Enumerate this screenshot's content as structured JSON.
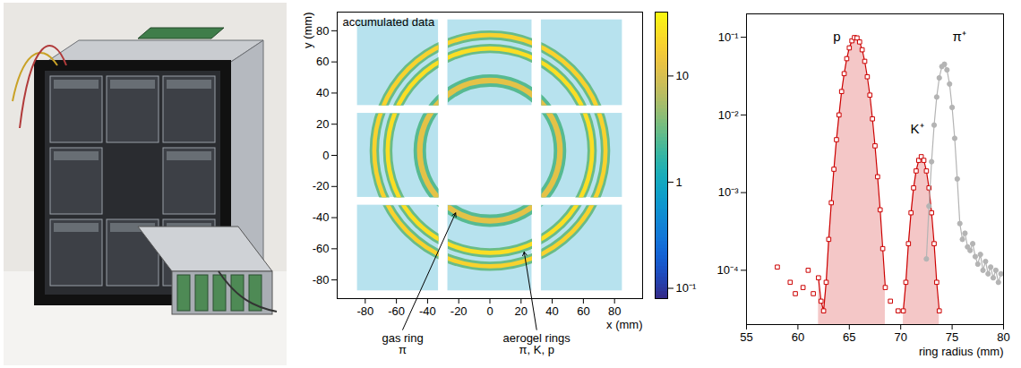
{
  "chart_data": [
    {
      "type": "ring_map",
      "title": "accumulated data",
      "x_label": "x (mm)",
      "y_label": "y (mm)",
      "xlim": [
        -98,
        98
      ],
      "ylim": [
        -92,
        92
      ],
      "xticks": [
        -80,
        -60,
        -40,
        -20,
        0,
        20,
        40,
        60,
        80
      ],
      "yticks": [
        -80,
        -60,
        -40,
        -20,
        0,
        20,
        40,
        60,
        80
      ],
      "center": [
        0,
        3
      ],
      "rings": [
        {
          "radius": 45,
          "width": 8,
          "core_value": 12,
          "edge_value": 2.5
        },
        {
          "radius": 65.6,
          "width": 6,
          "core_value": 25,
          "edge_value": 3
        },
        {
          "radius": 74.2,
          "width": 6,
          "core_value": 20,
          "edge_value": 3
        }
      ],
      "background": 0.8,
      "sensor_tiles": [
        [
          -85,
          -33,
          32,
          87
        ],
        [
          -27,
          27,
          32,
          87
        ],
        [
          33,
          85,
          32,
          87
        ],
        [
          -85,
          -33,
          -27,
          27
        ],
        [
          33,
          85,
          -27,
          27
        ],
        [
          -85,
          -33,
          -87,
          -32
        ],
        [
          -27,
          27,
          -87,
          -32
        ],
        [
          33,
          85,
          -87,
          -32
        ]
      ],
      "zlim": [
        0.08,
        40
      ],
      "zticks": [
        {
          "value": 0.1,
          "label": "10⁻¹"
        },
        1,
        10
      ],
      "annotations": [
        {
          "text": [
            "gas ring",
            "π"
          ],
          "x": -56,
          "y": -112,
          "target": [
            -22,
            -37
          ]
        },
        {
          "text": [
            "aerogel rings",
            "π, K, p"
          ],
          "x": 30,
          "y": -112,
          "target": [
            22,
            -62
          ]
        }
      ]
    },
    {
      "type": "line",
      "x_label": "ring radius (mm)",
      "log": "y",
      "xlim": [
        55,
        80
      ],
      "xticks": [
        55,
        60,
        65,
        70,
        75,
        80
      ],
      "ylim": [
        2e-05,
        0.2
      ],
      "yticks": [
        {
          "value": 0.0001,
          "label": "10⁻⁴"
        },
        {
          "value": 0.001,
          "label": "10⁻³"
        },
        {
          "value": 0.01,
          "label": "10⁻²"
        },
        {
          "value": 0.1,
          "label": "10⁻¹"
        }
      ],
      "x": [
        57.5,
        57.75,
        58,
        58.25,
        58.5,
        58.75,
        59,
        59.25,
        59.5,
        59.75,
        60,
        60.25,
        60.5,
        60.75,
        61,
        61.25,
        61.5,
        61.75,
        62,
        62.25,
        62.5,
        62.75,
        63,
        63.25,
        63.5,
        63.75,
        64,
        64.25,
        64.5,
        64.75,
        65,
        65.25,
        65.5,
        65.75,
        66,
        66.25,
        66.5,
        66.75,
        67,
        67.25,
        67.5,
        67.75,
        68,
        68.25,
        68.5,
        68.75,
        69,
        69.25,
        69.5,
        69.75,
        70,
        70.25,
        70.5,
        70.75,
        71,
        71.25,
        71.5,
        71.75,
        72,
        72.25,
        72.5,
        72.75,
        73,
        73.25,
        73.5,
        73.75,
        74,
        74.25,
        74.5,
        74.75,
        75,
        75.25,
        75.5,
        75.75,
        76,
        76.25,
        76.5,
        76.75,
        77,
        77.25,
        77.5,
        77.75,
        78,
        78.25,
        78.5,
        78.75,
        79,
        79.25,
        79.5,
        79.75
      ],
      "series": [
        {
          "color": "#cc0000",
          "type": "area",
          "marker": "square",
          "line_style": "solid",
          "values": [
            null,
            null,
            0.00011,
            null,
            null,
            null,
            null,
            7e-05,
            null,
            5e-05,
            null,
            null,
            6e-05,
            null,
            0.0001,
            null,
            5e-05,
            null,
            8e-05,
            4e-05,
            3e-05,
            7e-05,
            0.00025,
            0.00074,
            0.002,
            0.0048,
            0.01,
            0.02,
            0.034,
            0.053,
            0.073,
            0.09,
            0.099,
            0.098,
            0.087,
            0.069,
            0.049,
            0.031,
            0.018,
            0.0089,
            0.004,
            0.0016,
            0.0006,
            0.00019,
            6e-05,
            null,
            4e-05,
            null,
            null,
            3e-05,
            null,
            3e-05,
            7e-05,
            0.00022,
            0.00055,
            0.00115,
            0.0019,
            0.0026,
            0.0029,
            0.0026,
            0.0019,
            0.00115,
            0.00055,
            0.00022,
            7e-05,
            3e-05,
            null,
            null,
            null,
            null,
            null,
            null,
            null,
            null,
            null,
            null,
            null,
            null,
            null,
            null,
            null,
            null,
            null,
            null,
            null,
            null,
            null,
            null,
            null,
            null
          ]
        },
        {
          "color": "#b4b4b4",
          "type": "line",
          "marker": "circle",
          "line_style": "solid",
          "values": [
            null,
            null,
            null,
            null,
            null,
            null,
            null,
            null,
            null,
            null,
            null,
            null,
            null,
            null,
            null,
            null,
            null,
            null,
            null,
            null,
            null,
            null,
            null,
            null,
            null,
            null,
            null,
            null,
            null,
            null,
            null,
            null,
            null,
            null,
            null,
            null,
            null,
            null,
            null,
            null,
            null,
            null,
            null,
            null,
            null,
            null,
            null,
            null,
            null,
            null,
            null,
            null,
            null,
            null,
            null,
            null,
            null,
            null,
            null,
            null,
            0.00014,
            0.00067,
            0.0025,
            0.0074,
            0.017,
            0.03,
            0.042,
            0.045,
            0.038,
            0.025,
            0.0125,
            0.005,
            0.0015,
            0.0004,
            0.00025,
            0.0003,
            0.0002,
            0.00018,
            0.00022,
            0.00015,
            0.00012,
            0.00016,
            0.0001,
            0.00013,
            9e-05,
            0.00011,
            8e-05,
            0.0001,
            7e-05,
            9e-05
          ]
        }
      ],
      "annotations": [
        {
          "text": "p",
          "x": 63.8,
          "y": 0.1
        },
        {
          "text": "K⁺",
          "x": 71.6,
          "y": 0.0065
        },
        {
          "text": "π⁺",
          "x": 75.7,
          "y": 0.1
        }
      ]
    }
  ]
}
